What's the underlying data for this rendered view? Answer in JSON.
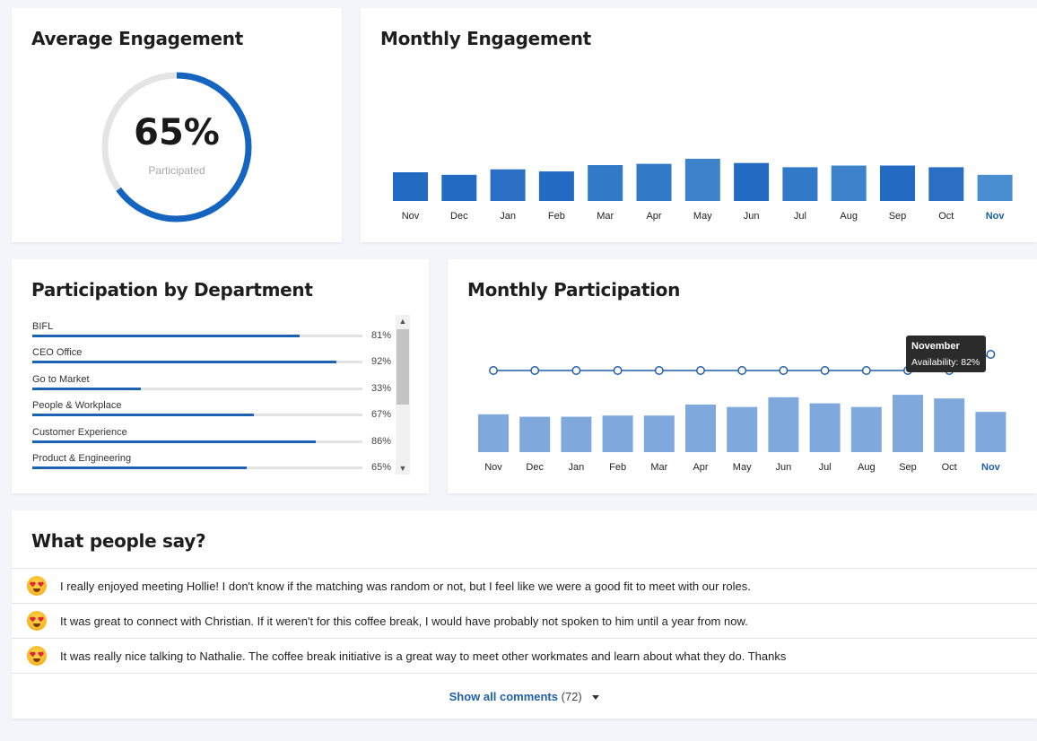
{
  "average_engagement": {
    "title": "Average Engagement",
    "value_label": "65%",
    "fraction": 0.65,
    "sub_label": "Participated",
    "accent": "#1565c0",
    "track": "#e4e4e4"
  },
  "monthly_engagement": {
    "title": "Monthly Engagement",
    "chart_data": {
      "type": "bar",
      "categories": [
        "Nov",
        "Dec",
        "Jan",
        "Feb",
        "Mar",
        "Apr",
        "May",
        "Jun",
        "Jul",
        "Aug",
        "Sep",
        "Oct",
        "Nov"
      ],
      "values": [
        68,
        62,
        75,
        70,
        85,
        88,
        100,
        90,
        80,
        84,
        84,
        80,
        62
      ],
      "ylim": [
        0,
        100
      ],
      "highlight_last": true,
      "bar_colors": [
        "#236bc2",
        "#236bc2",
        "#2a6fc4",
        "#236bc2",
        "#3279c7",
        "#3279c7",
        "#3d83cc",
        "#236bc2",
        "#3279c7",
        "#3d83cc",
        "#236bc2",
        "#2a6fc4",
        "#4a8ed2"
      ],
      "label_color": "#222222",
      "highlight_color": "#1f5fa8"
    }
  },
  "department": {
    "title": "Participation by Department",
    "items": [
      {
        "name": "BIFL",
        "value": 81,
        "pct": "81%"
      },
      {
        "name": "CEO Office",
        "value": 92,
        "pct": "92%"
      },
      {
        "name": "Go to Market",
        "value": 33,
        "pct": "33%"
      },
      {
        "name": "People & Workplace",
        "value": 67,
        "pct": "67%"
      },
      {
        "name": "Customer Experience",
        "value": 86,
        "pct": "86%"
      },
      {
        "name": "Product & Engineering",
        "value": 65,
        "pct": "65%"
      }
    ]
  },
  "monthly_participation": {
    "title": "Monthly Participation",
    "chart_data": {
      "type": "bar+line",
      "categories": [
        "Nov",
        "Dec",
        "Jan",
        "Feb",
        "Mar",
        "Apr",
        "May",
        "Jun",
        "Jul",
        "Aug",
        "Sep",
        "Oct",
        "Nov"
      ],
      "bar_values": [
        62,
        58,
        58,
        60,
        60,
        78,
        74,
        90,
        80,
        74,
        94,
        88,
        66
      ],
      "line_values": [
        78,
        78,
        78,
        78,
        78,
        78,
        78,
        78,
        78,
        78,
        78,
        78,
        82
      ],
      "ylim": [
        0,
        100
      ],
      "bar_color": "#7fa9dd",
      "line_color": "#1f5fa8",
      "tooltip": {
        "title": "November",
        "text": "Availability: 82%"
      }
    }
  },
  "comments": {
    "title": "What people say?",
    "items": [
      {
        "text": "I really enjoyed meeting Hollie! I don't know if the matching was random or not, but I feel like we were a good fit to meet with our roles."
      },
      {
        "text": "It was great to connect with Christian. If it weren't for this coffee break, I would have probably not spoken to him until a year from now."
      },
      {
        "text": "It was really nice talking to Nathalie. The coffee break initiative is a great way to meet other workmates and learn about what they do. Thanks"
      }
    ],
    "show_all_label": "Show all comments",
    "count_label": "(72)"
  }
}
